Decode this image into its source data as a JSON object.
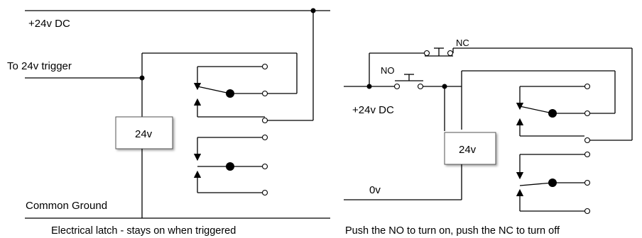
{
  "left": {
    "supply_label": "+24v DC",
    "trigger_label": "To 24v trigger",
    "coil_label": "24v",
    "ground_label": "Common Ground",
    "caption": "Electrical latch - stays on when triggered"
  },
  "right": {
    "supply_label": "+24v DC",
    "nc_label": "NC",
    "no_label": "NO",
    "coil_label": "24v",
    "zero_label": "0v",
    "caption": "Push the NO to turn on, push the NC to turn off"
  }
}
